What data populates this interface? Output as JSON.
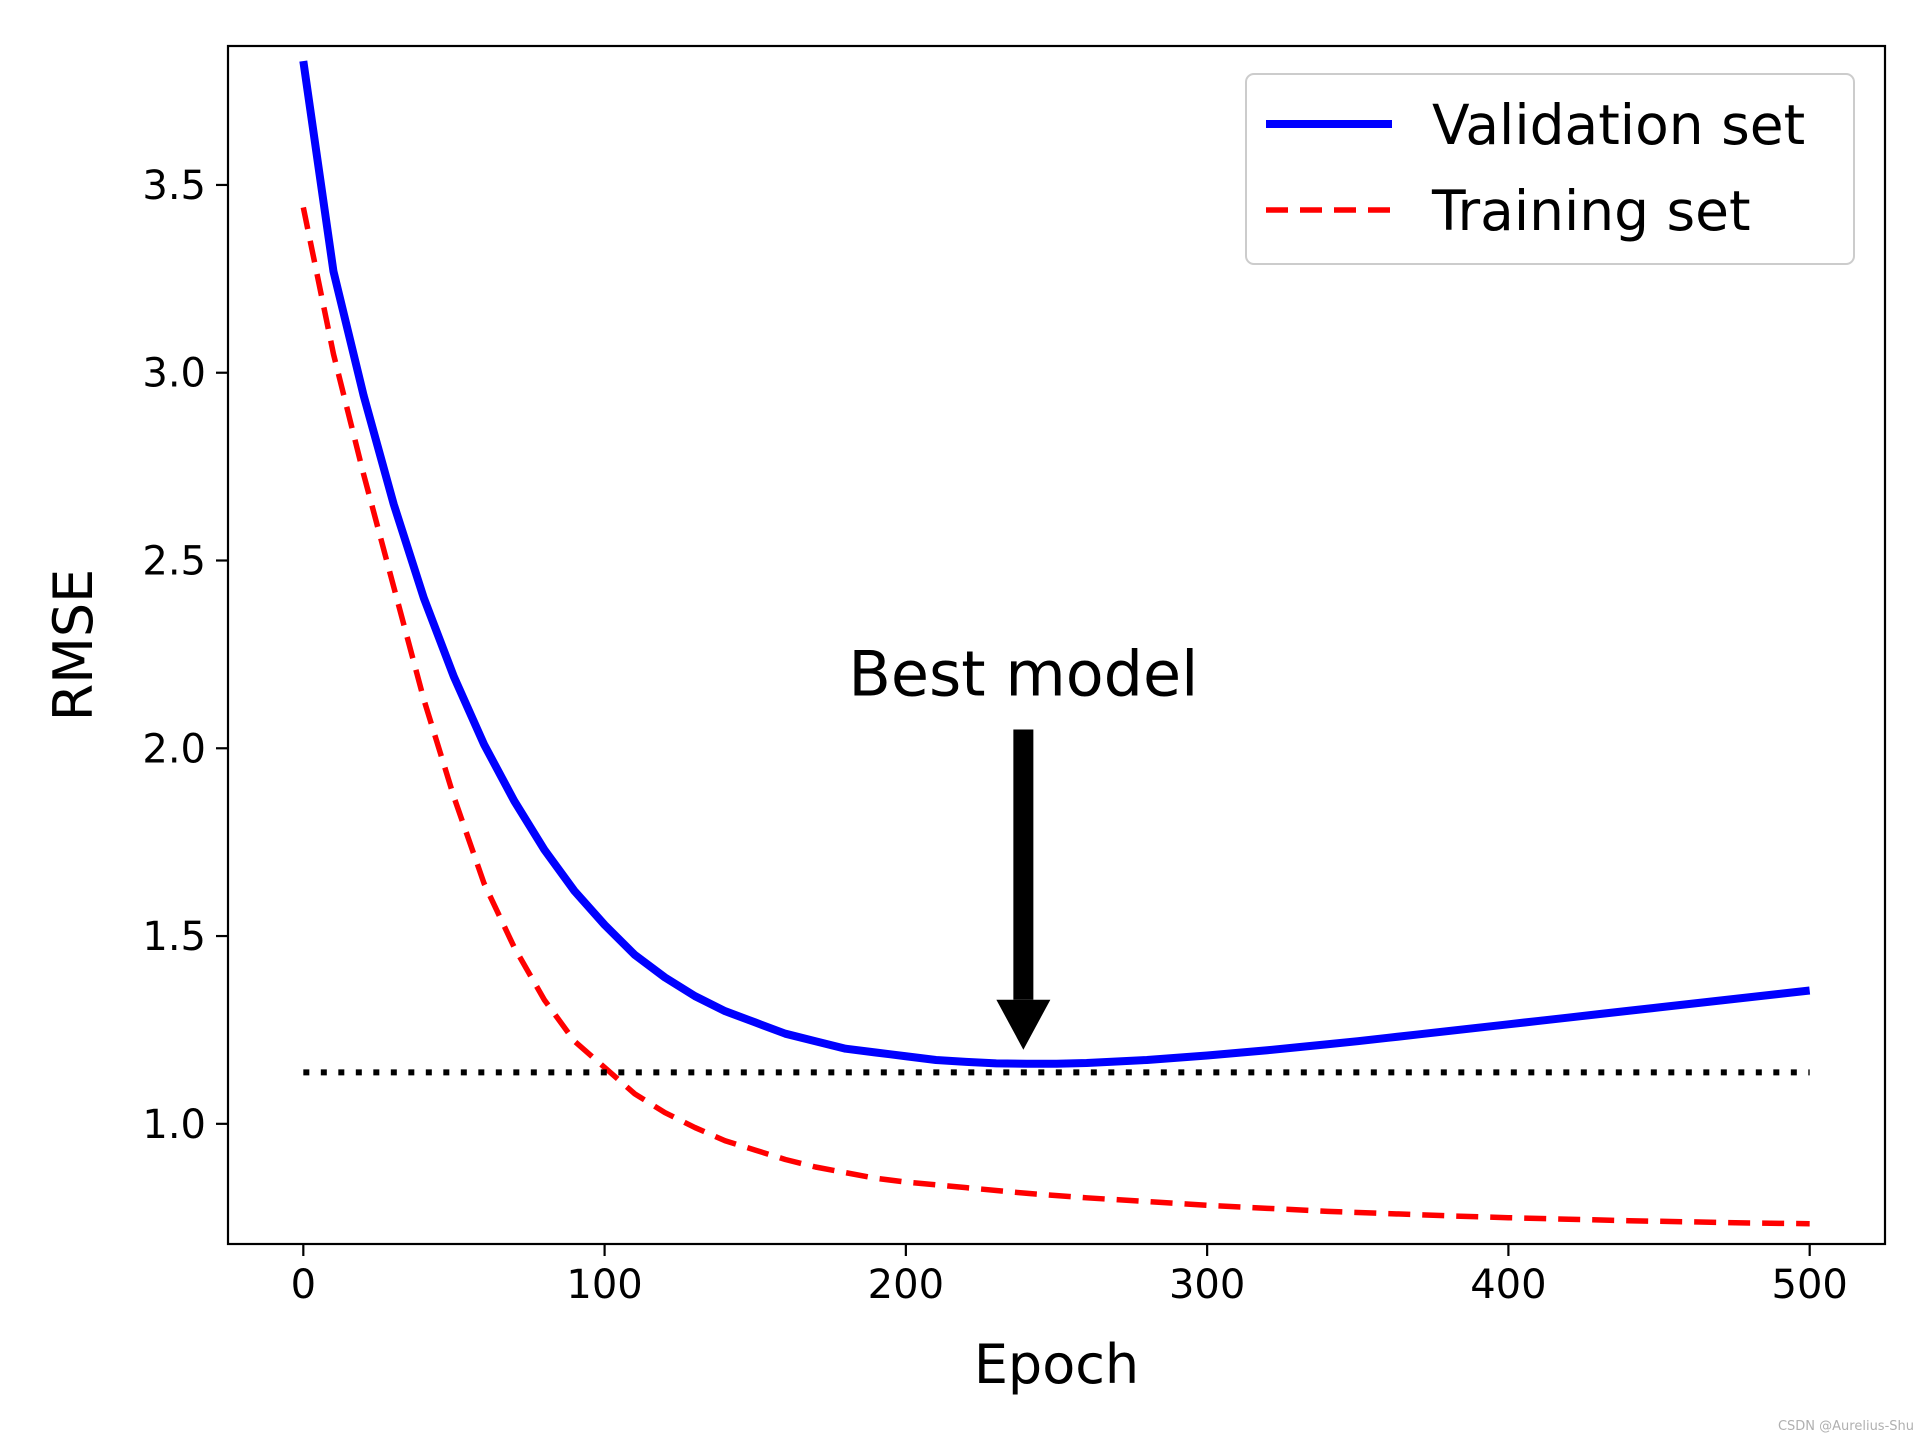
{
  "chart_data": {
    "type": "line",
    "title": "",
    "xlabel": "Epoch",
    "ylabel": "RMSE",
    "xlim": [
      -25,
      525
    ],
    "ylim": [
      0.68,
      3.87
    ],
    "xticks": [
      0,
      100,
      200,
      300,
      400,
      500
    ],
    "xtick_labels": [
      "0",
      "100",
      "200",
      "300",
      "400",
      "500"
    ],
    "yticks": [
      1.0,
      1.5,
      2.0,
      2.5,
      3.0,
      3.5
    ],
    "ytick_labels": [
      "1.0",
      "1.5",
      "2.0",
      "2.5",
      "3.0",
      "3.5"
    ],
    "legend_position": "upper right",
    "series": [
      {
        "name": "Validation set",
        "style": "solid",
        "color": "#0000ff",
        "x": [
          0,
          10,
          20,
          30,
          40,
          50,
          60,
          70,
          80,
          90,
          100,
          110,
          120,
          130,
          140,
          150,
          160,
          170,
          180,
          190,
          200,
          210,
          220,
          230,
          240,
          250,
          260,
          270,
          280,
          290,
          300,
          310,
          320,
          330,
          340,
          350,
          360,
          370,
          380,
          390,
          400,
          410,
          420,
          430,
          440,
          450,
          460,
          470,
          480,
          490,
          500
        ],
        "y": [
          3.83,
          3.27,
          2.94,
          2.65,
          2.4,
          2.19,
          2.01,
          1.86,
          1.73,
          1.62,
          1.53,
          1.45,
          1.39,
          1.34,
          1.3,
          1.27,
          1.24,
          1.22,
          1.2,
          1.19,
          1.18,
          1.17,
          1.165,
          1.161,
          1.16,
          1.16,
          1.162,
          1.166,
          1.17,
          1.176,
          1.182,
          1.189,
          1.196,
          1.204,
          1.212,
          1.22,
          1.229,
          1.238,
          1.247,
          1.256,
          1.265,
          1.274,
          1.283,
          1.292,
          1.301,
          1.31,
          1.319,
          1.328,
          1.337,
          1.346,
          1.355
        ]
      },
      {
        "name": "Training set",
        "style": "dashed",
        "color": "#ff0000",
        "x": [
          0,
          10,
          20,
          30,
          40,
          50,
          60,
          70,
          80,
          90,
          100,
          110,
          120,
          130,
          140,
          150,
          160,
          170,
          180,
          190,
          200,
          220,
          240,
          260,
          280,
          300,
          320,
          340,
          360,
          380,
          400,
          420,
          440,
          460,
          480,
          500
        ],
        "y": [
          3.44,
          3.05,
          2.73,
          2.43,
          2.13,
          1.87,
          1.64,
          1.47,
          1.33,
          1.22,
          1.15,
          1.08,
          1.03,
          0.99,
          0.955,
          0.93,
          0.905,
          0.885,
          0.87,
          0.855,
          0.845,
          0.83,
          0.815,
          0.803,
          0.793,
          0.783,
          0.775,
          0.767,
          0.761,
          0.755,
          0.75,
          0.746,
          0.742,
          0.739,
          0.736,
          0.734
        ]
      },
      {
        "name": "",
        "style": "dotted",
        "color": "#000000",
        "x": [
          0,
          500
        ],
        "y": [
          1.137,
          1.137
        ]
      }
    ],
    "annotations": [
      {
        "text": "Best model",
        "xy": [
          239,
          1.2
        ],
        "xytext": [
          239,
          2.05
        ],
        "arrow": true
      }
    ]
  }
}
